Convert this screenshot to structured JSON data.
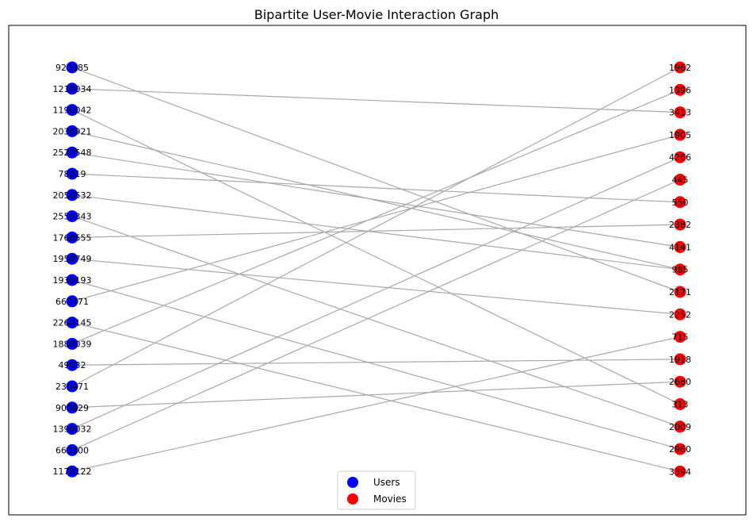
{
  "title": "Bipartite User-Movie Interaction Graph",
  "colors": {
    "users": "#0000ff",
    "movies": "#ff0000",
    "edge": "#a8a8a8",
    "frame": "#000000"
  },
  "legend": [
    {
      "label": "Users",
      "color": "#0000ff"
    },
    {
      "label": "Movies",
      "color": "#ff0000"
    }
  ],
  "users": [
    "920385",
    "1210034",
    "1190042",
    "2030921",
    "2520548",
    "78019",
    "2050532",
    "2550343",
    "1760555",
    "1950749",
    "1930193",
    "660471",
    "2260145",
    "1880039",
    "49032",
    "230471",
    "900029",
    "1390032",
    "660300",
    "1170122"
  ],
  "movies": [
    "1962",
    "1396",
    "3413",
    "1905",
    "4266",
    "445",
    "550",
    "2382",
    "4141",
    "985",
    "2171",
    "2252",
    "715",
    "1918",
    "2680",
    "313",
    "2009",
    "2960",
    "3394"
  ],
  "edges": [
    [
      "920385",
      "2171"
    ],
    [
      "1210034",
      "3413"
    ],
    [
      "1190042",
      "313"
    ],
    [
      "2030921",
      "985"
    ],
    [
      "2520548",
      "4141"
    ],
    [
      "78019",
      "550"
    ],
    [
      "2050532",
      "985"
    ],
    [
      "2550343",
      "2009"
    ],
    [
      "1760555",
      "2382"
    ],
    [
      "1950749",
      "2252"
    ],
    [
      "1930193",
      "2960"
    ],
    [
      "660471",
      "1905"
    ],
    [
      "2260145",
      "3394"
    ],
    [
      "1880039",
      "1396"
    ],
    [
      "49032",
      "1918"
    ],
    [
      "230471",
      "1962"
    ],
    [
      "900029",
      "2680"
    ],
    [
      "1390032",
      "4266"
    ],
    [
      "660300",
      "445"
    ],
    [
      "1170122",
      "715"
    ]
  ]
}
